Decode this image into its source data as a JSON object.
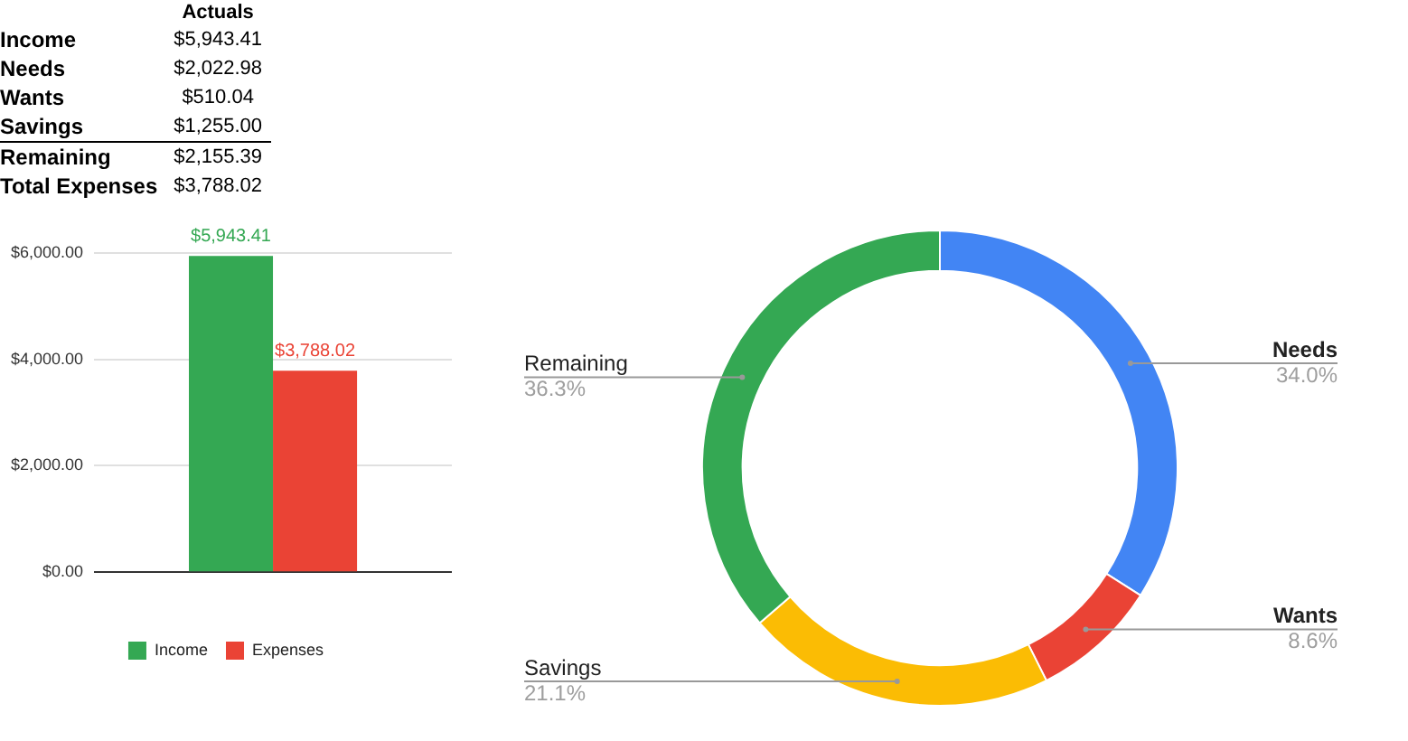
{
  "chart_data": [
    {
      "type": "other",
      "title": "Actuals",
      "categories": [
        "Income",
        "Needs",
        "Wants",
        "Savings",
        "Remaining",
        "Total Expenses"
      ],
      "value_labels": [
        "$5,943.41",
        "$2,022.98",
        "$510.04",
        "$1,255.00",
        "$2,155.39",
        "$3,788.02"
      ]
    },
    {
      "type": "bar",
      "categories": [
        null
      ],
      "series": [
        {
          "name": "Income",
          "color": "#34a853",
          "values": [
            5943.41
          ],
          "value_labels": [
            "$5,943.41"
          ]
        },
        {
          "name": "Expenses",
          "color": "#ea4335",
          "values": [
            3788.02
          ],
          "value_labels": [
            "$3,788.02"
          ]
        }
      ],
      "ylim": [
        0,
        6000
      ],
      "yticks": [
        {
          "value": 0,
          "label": "$0.00"
        },
        {
          "value": 2000,
          "label": "$2,000.00"
        },
        {
          "value": 4000,
          "label": "$4,000.00"
        },
        {
          "value": 6000,
          "label": "$6,000.00"
        }
      ],
      "grid": "y",
      "legend": "bottom"
    },
    {
      "type": "donut",
      "categories": [
        "Needs",
        "Wants",
        "Savings",
        "Remaining"
      ],
      "values": [
        34.0,
        8.6,
        21.1,
        36.3
      ],
      "colors": [
        "#4285f4",
        "#ea4335",
        "#fbbc04",
        "#34a853"
      ],
      "value_labels": [
        "34.0%",
        "8.6%",
        "21.1%",
        "36.3%"
      ]
    }
  ]
}
